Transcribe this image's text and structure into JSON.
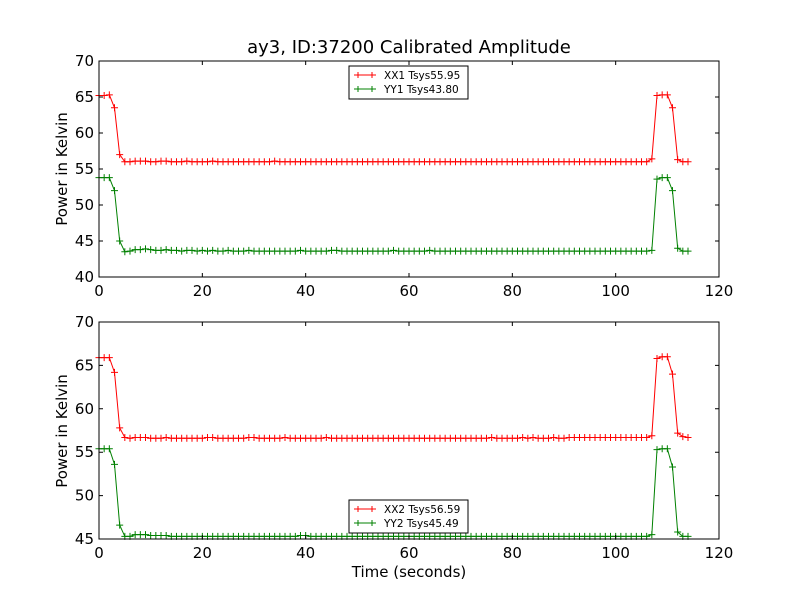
{
  "chart_data": [
    {
      "type": "line",
      "title": "ay3, ID:37200 Calibrated Amplitude",
      "xlabel": "",
      "ylabel": "Power in Kelvin",
      "xlim": [
        0,
        120
      ],
      "ylim": [
        40,
        70
      ],
      "xticks": [
        "0",
        "20",
        "40",
        "60",
        "80",
        "100",
        "120"
      ],
      "yticks": [
        "40",
        "45",
        "50",
        "55",
        "60",
        "65",
        "70"
      ],
      "grid": false,
      "legend_position": "top-center",
      "series": [
        {
          "name": "XX1 Tsys55.95",
          "color": "#ff0000",
          "marker": "+",
          "x": [
            0,
            1,
            2,
            3,
            4,
            5,
            6,
            7,
            8,
            9,
            10,
            11,
            12,
            13,
            14,
            15,
            16,
            17,
            18,
            19,
            20,
            21,
            22,
            23,
            24,
            25,
            26,
            27,
            28,
            29,
            30,
            31,
            32,
            33,
            34,
            35,
            36,
            37,
            38,
            39,
            40,
            41,
            42,
            43,
            44,
            45,
            46,
            47,
            48,
            49,
            50,
            51,
            52,
            53,
            54,
            55,
            56,
            57,
            58,
            59,
            60,
            61,
            62,
            63,
            64,
            65,
            66,
            67,
            68,
            69,
            70,
            71,
            72,
            73,
            74,
            75,
            76,
            77,
            78,
            79,
            80,
            81,
            82,
            83,
            84,
            85,
            86,
            87,
            88,
            89,
            90,
            91,
            92,
            93,
            94,
            95,
            96,
            97,
            98,
            99,
            100,
            101,
            102,
            103,
            104,
            105,
            106,
            107,
            108,
            109,
            110,
            111,
            112,
            113,
            114
          ],
          "y": [
            65.2,
            65.2,
            65.3,
            63.5,
            57,
            56,
            56,
            56.1,
            56.1,
            56.1,
            56,
            56,
            56.1,
            56.1,
            56,
            56,
            56,
            56.1,
            56,
            56,
            56,
            56,
            56.1,
            56,
            56,
            56,
            56,
            56,
            56,
            56,
            56,
            56,
            56,
            56,
            56.1,
            56,
            56,
            56,
            56,
            56,
            56,
            56,
            56,
            56,
            56,
            56,
            56,
            56,
            56,
            56,
            56,
            56,
            56,
            56,
            56,
            56,
            56,
            56,
            56,
            56,
            56,
            56,
            56,
            56,
            56,
            56,
            56,
            56,
            56,
            56,
            56,
            56,
            56,
            56,
            56,
            56,
            56,
            56,
            56,
            56,
            56,
            56,
            56,
            56,
            56,
            56,
            56,
            56,
            56,
            56,
            56,
            56,
            56,
            56,
            56,
            56,
            56,
            56,
            56,
            56,
            56,
            56,
            56,
            56,
            56,
            56,
            56,
            56.4,
            65.2,
            65.3,
            65.3,
            63.5,
            56.3,
            56,
            56
          ]
        },
        {
          "name": "YY1 Tsys43.80",
          "color": "#008000",
          "marker": "+",
          "x": [
            0,
            1,
            2,
            3,
            4,
            5,
            6,
            7,
            8,
            9,
            10,
            11,
            12,
            13,
            14,
            15,
            16,
            17,
            18,
            19,
            20,
            21,
            22,
            23,
            24,
            25,
            26,
            27,
            28,
            29,
            30,
            31,
            32,
            33,
            34,
            35,
            36,
            37,
            38,
            39,
            40,
            41,
            42,
            43,
            44,
            45,
            46,
            47,
            48,
            49,
            50,
            51,
            52,
            53,
            54,
            55,
            56,
            57,
            58,
            59,
            60,
            61,
            62,
            63,
            64,
            65,
            66,
            67,
            68,
            69,
            70,
            71,
            72,
            73,
            74,
            75,
            76,
            77,
            78,
            79,
            80,
            81,
            82,
            83,
            84,
            85,
            86,
            87,
            88,
            89,
            90,
            91,
            92,
            93,
            94,
            95,
            96,
            97,
            98,
            99,
            100,
            101,
            102,
            103,
            104,
            105,
            106,
            107,
            108,
            109,
            110,
            111,
            112,
            113,
            114
          ],
          "y": [
            53.8,
            53.8,
            53.8,
            52,
            45,
            43.5,
            43.6,
            43.8,
            43.8,
            43.9,
            43.8,
            43.7,
            43.7,
            43.8,
            43.7,
            43.7,
            43.6,
            43.7,
            43.7,
            43.6,
            43.7,
            43.6,
            43.7,
            43.6,
            43.6,
            43.7,
            43.6,
            43.6,
            43.6,
            43.7,
            43.6,
            43.6,
            43.6,
            43.6,
            43.6,
            43.6,
            43.6,
            43.6,
            43.6,
            43.7,
            43.6,
            43.6,
            43.6,
            43.6,
            43.6,
            43.7,
            43.7,
            43.6,
            43.6,
            43.6,
            43.6,
            43.6,
            43.6,
            43.6,
            43.6,
            43.6,
            43.6,
            43.7,
            43.6,
            43.6,
            43.6,
            43.6,
            43.6,
            43.6,
            43.7,
            43.6,
            43.6,
            43.6,
            43.6,
            43.6,
            43.6,
            43.6,
            43.6,
            43.6,
            43.6,
            43.6,
            43.6,
            43.6,
            43.6,
            43.6,
            43.6,
            43.6,
            43.6,
            43.6,
            43.6,
            43.6,
            43.6,
            43.6,
            43.6,
            43.6,
            43.6,
            43.6,
            43.6,
            43.6,
            43.6,
            43.6,
            43.6,
            43.6,
            43.6,
            43.6,
            43.6,
            43.6,
            43.6,
            43.6,
            43.6,
            43.6,
            43.6,
            43.7,
            53.6,
            53.8,
            53.8,
            52,
            44,
            43.6,
            43.6
          ]
        }
      ]
    },
    {
      "type": "line",
      "title": "",
      "xlabel": "Time (seconds)",
      "ylabel": "Power in Kelvin",
      "xlim": [
        0,
        120
      ],
      "ylim": [
        45,
        70
      ],
      "xticks": [
        "0",
        "20",
        "40",
        "60",
        "80",
        "100",
        "120"
      ],
      "yticks": [
        "45",
        "50",
        "55",
        "60",
        "65",
        "70"
      ],
      "grid": false,
      "legend_position": "bottom-center",
      "series": [
        {
          "name": "XX2 Tsys56.59",
          "color": "#ff0000",
          "marker": "+",
          "x": [
            0,
            1,
            2,
            3,
            4,
            5,
            6,
            7,
            8,
            9,
            10,
            11,
            12,
            13,
            14,
            15,
            16,
            17,
            18,
            19,
            20,
            21,
            22,
            23,
            24,
            25,
            26,
            27,
            28,
            29,
            30,
            31,
            32,
            33,
            34,
            35,
            36,
            37,
            38,
            39,
            40,
            41,
            42,
            43,
            44,
            45,
            46,
            47,
            48,
            49,
            50,
            51,
            52,
            53,
            54,
            55,
            56,
            57,
            58,
            59,
            60,
            61,
            62,
            63,
            64,
            65,
            66,
            67,
            68,
            69,
            70,
            71,
            72,
            73,
            74,
            75,
            76,
            77,
            78,
            79,
            80,
            81,
            82,
            83,
            84,
            85,
            86,
            87,
            88,
            89,
            90,
            91,
            92,
            93,
            94,
            95,
            96,
            97,
            98,
            99,
            100,
            101,
            102,
            103,
            104,
            105,
            106,
            107,
            108,
            109,
            110,
            111,
            112,
            113,
            114
          ],
          "y": [
            65.9,
            65.9,
            65.9,
            64.2,
            57.8,
            56.7,
            56.6,
            56.7,
            56.7,
            56.7,
            56.6,
            56.6,
            56.6,
            56.7,
            56.6,
            56.6,
            56.6,
            56.6,
            56.6,
            56.6,
            56.6,
            56.7,
            56.7,
            56.6,
            56.6,
            56.6,
            56.6,
            56.6,
            56.6,
            56.7,
            56.7,
            56.6,
            56.6,
            56.6,
            56.6,
            56.6,
            56.7,
            56.6,
            56.6,
            56.6,
            56.6,
            56.6,
            56.6,
            56.6,
            56.7,
            56.6,
            56.6,
            56.6,
            56.6,
            56.6,
            56.6,
            56.6,
            56.6,
            56.6,
            56.6,
            56.6,
            56.6,
            56.6,
            56.6,
            56.6,
            56.6,
            56.6,
            56.6,
            56.6,
            56.6,
            56.6,
            56.6,
            56.6,
            56.6,
            56.6,
            56.6,
            56.6,
            56.6,
            56.6,
            56.6,
            56.6,
            56.7,
            56.6,
            56.6,
            56.6,
            56.6,
            56.6,
            56.7,
            56.6,
            56.7,
            56.6,
            56.6,
            56.6,
            56.7,
            56.6,
            56.6,
            56.7,
            56.7,
            56.7,
            56.7,
            56.7,
            56.7,
            56.7,
            56.7,
            56.7,
            56.7,
            56.7,
            56.7,
            56.7,
            56.7,
            56.7,
            56.7,
            56.9,
            65.8,
            66,
            66,
            64,
            57.2,
            56.8,
            56.7
          ]
        },
        {
          "name": "YY2 Tsys45.49",
          "color": "#008000",
          "marker": "+",
          "x": [
            0,
            1,
            2,
            3,
            4,
            5,
            6,
            7,
            8,
            9,
            10,
            11,
            12,
            13,
            14,
            15,
            16,
            17,
            18,
            19,
            20,
            21,
            22,
            23,
            24,
            25,
            26,
            27,
            28,
            29,
            30,
            31,
            32,
            33,
            34,
            35,
            36,
            37,
            38,
            39,
            40,
            41,
            42,
            43,
            44,
            45,
            46,
            47,
            48,
            49,
            50,
            51,
            52,
            53,
            54,
            55,
            56,
            57,
            58,
            59,
            60,
            61,
            62,
            63,
            64,
            65,
            66,
            67,
            68,
            69,
            70,
            71,
            72,
            73,
            74,
            75,
            76,
            77,
            78,
            79,
            80,
            81,
            82,
            83,
            84,
            85,
            86,
            87,
            88,
            89,
            90,
            91,
            92,
            93,
            94,
            95,
            96,
            97,
            98,
            99,
            100,
            101,
            102,
            103,
            104,
            105,
            106,
            107,
            108,
            109,
            110,
            111,
            112,
            113,
            114
          ],
          "y": [
            55.4,
            55.4,
            55.4,
            53.6,
            46.6,
            45.3,
            45.3,
            45.5,
            45.5,
            45.5,
            45.4,
            45.4,
            45.4,
            45.4,
            45.3,
            45.3,
            45.3,
            45.3,
            45.3,
            45.3,
            45.3,
            45.3,
            45.3,
            45.3,
            45.3,
            45.3,
            45.3,
            45.3,
            45.3,
            45.3,
            45.3,
            45.3,
            45.3,
            45.3,
            45.3,
            45.3,
            45.3,
            45.3,
            45.3,
            45.4,
            45.4,
            45.3,
            45.3,
            45.3,
            45.3,
            45.3,
            45.3,
            45.3,
            45.3,
            45.3,
            45.3,
            45.3,
            45.3,
            45.3,
            45.3,
            45.3,
            45.3,
            45.3,
            45.3,
            45.3,
            45.3,
            45.3,
            45.3,
            45.3,
            45.3,
            45.3,
            45.3,
            45.3,
            45.3,
            45.3,
            45.3,
            45.3,
            45.3,
            45.3,
            45.3,
            45.3,
            45.3,
            45.3,
            45.3,
            45.3,
            45.3,
            45.3,
            45.3,
            45.3,
            45.3,
            45.3,
            45.3,
            45.3,
            45.3,
            45.3,
            45.3,
            45.3,
            45.3,
            45.3,
            45.3,
            45.3,
            45.3,
            45.3,
            45.3,
            45.3,
            45.3,
            45.3,
            45.3,
            45.3,
            45.3,
            45.3,
            45.3,
            45.5,
            55.3,
            55.4,
            55.4,
            53.3,
            45.8,
            45.3,
            45.3
          ]
        }
      ]
    }
  ]
}
